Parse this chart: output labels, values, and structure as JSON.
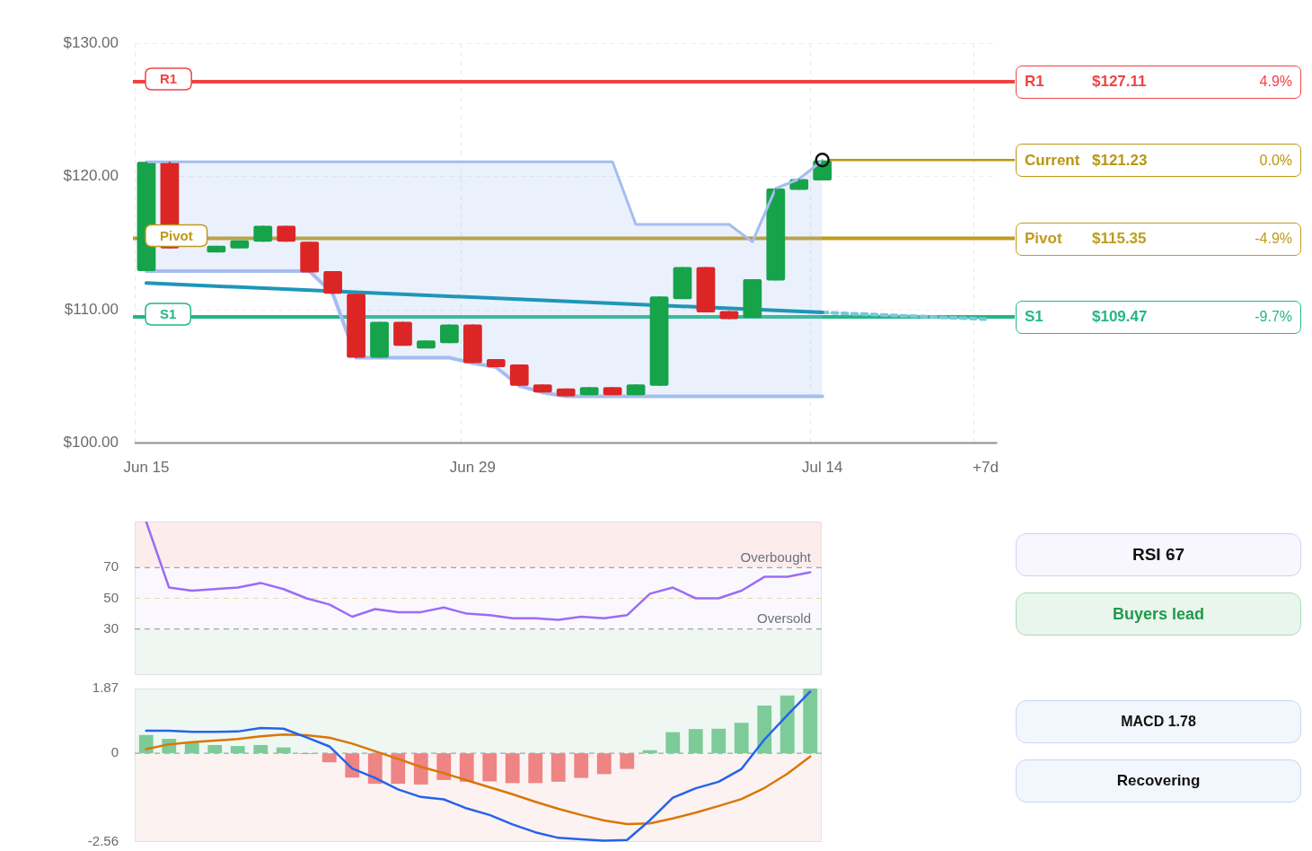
{
  "chart_data": [
    {
      "type": "candlestick",
      "categories": [
        "Jun 15",
        null,
        null,
        null,
        null,
        null,
        null,
        null,
        null,
        null,
        null,
        null,
        null,
        null,
        "Jun 29",
        null,
        null,
        null,
        null,
        null,
        null,
        null,
        null,
        null,
        null,
        null,
        null,
        null,
        null,
        "Jul 14",
        null,
        null,
        null,
        null,
        null,
        null,
        "+7d"
      ],
      "ohlc": [
        [
          112.9,
          121.1,
          112.9,
          121.1
        ],
        [
          121.1,
          121.1,
          114.6,
          114.6
        ],
        null,
        [
          114.3,
          114.8,
          114.3,
          114.8
        ],
        [
          114.6,
          115.2,
          114.6,
          115.2
        ],
        [
          115.1,
          116.3,
          115.1,
          116.3
        ],
        [
          116.3,
          116.3,
          115.1,
          115.1
        ],
        [
          115.1,
          115.1,
          112.8,
          112.8
        ],
        [
          112.9,
          112.9,
          111.2,
          111.2
        ],
        [
          111.2,
          111.2,
          106.4,
          106.4
        ],
        [
          106.4,
          109.1,
          106.4,
          109.1
        ],
        [
          109.1,
          109.1,
          107.3,
          107.3
        ],
        [
          107.1,
          107.7,
          107.1,
          107.7
        ],
        [
          107.5,
          108.9,
          107.5,
          108.9
        ],
        [
          108.9,
          108.9,
          106.0,
          106.0
        ],
        [
          106.3,
          106.3,
          105.7,
          105.7
        ],
        [
          105.9,
          105.9,
          104.3,
          104.3
        ],
        [
          104.4,
          104.4,
          103.8,
          103.8
        ],
        [
          104.1,
          104.1,
          103.5,
          103.5
        ],
        [
          103.6,
          104.2,
          103.6,
          104.2
        ],
        [
          104.2,
          104.2,
          103.6,
          103.6
        ],
        [
          103.6,
          104.4,
          103.6,
          104.4
        ],
        [
          104.3,
          111.0,
          104.3,
          111.0
        ],
        [
          110.8,
          113.2,
          110.8,
          113.2
        ],
        [
          113.2,
          113.2,
          109.8,
          109.8
        ],
        [
          109.9,
          109.9,
          109.3,
          109.3
        ],
        [
          109.4,
          112.3,
          109.4,
          112.3
        ],
        [
          112.2,
          119.1,
          112.2,
          119.1
        ],
        [
          119.0,
          119.8,
          119.0,
          119.8
        ],
        [
          119.7,
          121.2,
          119.7,
          121.2
        ],
        null,
        null,
        null,
        null,
        null,
        null,
        null
      ],
      "series": [
        {
          "type": "line",
          "color": "#a4bdf2",
          "values": [
            112.9,
            112.9,
            112.9,
            112.9,
            112.9,
            112.9,
            112.9,
            112.9,
            111.2,
            106.4,
            106.4,
            106.4,
            106.4,
            106.4,
            106.0,
            105.7,
            104.3,
            103.8,
            103.5,
            103.5,
            103.5,
            103.5,
            103.5,
            103.5,
            103.5,
            103.5,
            103.5,
            103.5,
            103.5,
            103.5,
            null,
            null,
            null,
            null,
            null,
            null,
            null
          ]
        },
        {
          "type": "line",
          "color": "#a4bdf2",
          "upper": [
            121.1,
            121.1,
            121.1,
            121.1,
            121.1,
            121.1,
            121.1,
            121.1,
            121.1,
            121.1,
            121.1,
            121.1,
            121.1,
            121.1,
            121.1,
            121.1,
            121.1,
            121.1,
            121.1,
            121.1,
            121.1,
            116.4,
            116.4,
            116.4,
            116.4,
            116.4,
            115.1,
            119.1,
            119.8,
            121.2,
            null,
            null,
            null,
            null,
            null,
            null,
            null
          ],
          "values": [
            121.1,
            121.1,
            121.1,
            121.1,
            121.1,
            121.1,
            121.1,
            121.1,
            121.1,
            121.1,
            121.1,
            121.1,
            121.1,
            121.1,
            121.1,
            121.1,
            121.1,
            121.1,
            121.1,
            121.1,
            121.1,
            116.4,
            116.4,
            116.4,
            116.4,
            116.4,
            115.1,
            119.1,
            119.8,
            121.2,
            null,
            null,
            null,
            null,
            null,
            null,
            null
          ],
          "lower": [
            112.9,
            112.9,
            112.9,
            112.9,
            112.9,
            112.9,
            112.9,
            112.9,
            111.2,
            106.4,
            106.4,
            106.4,
            106.4,
            106.4,
            106.0,
            105.7,
            104.3,
            103.8,
            103.5,
            103.5,
            103.5,
            103.5,
            103.5,
            103.5,
            103.5,
            103.5,
            103.5,
            103.5,
            103.5,
            103.5,
            null,
            null,
            null,
            null,
            null,
            null,
            null
          ]
        },
        {
          "type": "line",
          "color": "#1e96b9",
          "values": [
            112.0,
            null,
            null,
            null,
            null,
            null,
            null,
            null,
            null,
            null,
            null,
            null,
            null,
            null,
            null,
            null,
            null,
            null,
            null,
            null,
            null,
            null,
            null,
            null,
            null,
            null,
            null,
            null,
            null,
            109.8,
            null,
            null,
            null,
            null,
            null,
            null,
            null
          ]
        },
        {
          "type": "line",
          "color": "#7cc6da",
          "line_style": "dashed",
          "values": [
            null,
            null,
            null,
            null,
            null,
            null,
            null,
            null,
            null,
            null,
            null,
            null,
            null,
            null,
            null,
            null,
            null,
            null,
            null,
            null,
            null,
            null,
            null,
            null,
            null,
            null,
            null,
            null,
            null,
            109.8,
            null,
            null,
            null,
            null,
            null,
            null,
            109.3
          ]
        }
      ],
      "ylim": [
        100,
        130
      ],
      "yticks": [
        {
          "value": 100,
          "label": "$100.00"
        },
        {
          "value": 110,
          "label": "$110.00"
        },
        {
          "value": 120,
          "label": "$120.00"
        },
        {
          "value": 130,
          "label": "$130.00"
        }
      ],
      "grid": true,
      "ref_lines": [
        {
          "axis": "y",
          "value": 127.11,
          "label": "R1",
          "color": "#ef4444"
        },
        {
          "axis": "y",
          "value": 115.35,
          "label": "Pivot",
          "color": "#bf9b1b"
        },
        {
          "axis": "y",
          "value": 109.47,
          "label": "S1",
          "color": "#22b886"
        }
      ],
      "annotations": [
        {
          "text": "Current",
          "x": "Jul 14",
          "y": 121.23
        },
        "$127.11",
        "4.9%",
        "$121.23",
        "0.0%",
        "$115.35",
        "-4.9%",
        "$109.47",
        "-9.7%"
      ]
    },
    {
      "type": "line",
      "categories": [
        null,
        null,
        null,
        null,
        null,
        null,
        null,
        null,
        null,
        null,
        null,
        null,
        null,
        null,
        null,
        null,
        null,
        null,
        null,
        null,
        null,
        null,
        null,
        null,
        null,
        null,
        null,
        null,
        null,
        null
      ],
      "tick_labels": "y",
      "series": [
        {
          "color": "#9b6cf6",
          "values": [
            100,
            57,
            55,
            56,
            57,
            60,
            56,
            50,
            46,
            38,
            43,
            41,
            41,
            44,
            40,
            39,
            37,
            37,
            36,
            38,
            37,
            39,
            53,
            57,
            50,
            50,
            55,
            64,
            64,
            67
          ]
        }
      ],
      "ylim": [
        0,
        100
      ],
      "yticks": [
        30,
        50,
        70
      ],
      "ref_lines": [
        {
          "axis": "y",
          "value": 70,
          "label": "Overbought",
          "color": "#a0a4ab",
          "line_style": "dashed"
        },
        {
          "axis": "y",
          "value": 50,
          "color": "#ead9a0",
          "line_style": "dashed"
        },
        {
          "axis": "y",
          "value": 30,
          "label": "Oversold",
          "color": "#a0a4ab",
          "line_style": "dashed"
        }
      ],
      "bands": [
        {
          "axis": "y",
          "from": 70,
          "to": 100,
          "color": "#fcecec"
        },
        {
          "axis": "y",
          "from": 30,
          "to": 70,
          "color": "#faf8fe"
        },
        {
          "axis": "y",
          "from": 0,
          "to": 30,
          "color": "#eef7f1"
        }
      ],
      "annotations": [
        "RSI 67",
        "Buyers lead"
      ]
    },
    {
      "type": "bar",
      "categories": [
        null,
        null,
        null,
        null,
        null,
        null,
        null,
        null,
        null,
        null,
        null,
        null,
        null,
        null,
        null,
        null,
        null,
        null,
        null,
        null,
        null,
        null,
        null,
        null,
        null,
        null,
        null,
        null,
        null,
        null
      ],
      "tick_labels": "y",
      "series": [
        {
          "type": "bar",
          "colors": [
            "#7dcb98",
            "#7dcb98",
            "#7dcb98",
            "#7dcb98",
            "#7dcb98",
            "#7dcb98",
            "#7dcb98",
            "#ee8484",
            "#ee8484",
            "#ee8484",
            "#ee8484",
            "#ee8484",
            "#ee8484",
            "#ee8484",
            "#ee8484",
            "#ee8484",
            "#ee8484",
            "#ee8484",
            "#ee8484",
            "#ee8484",
            "#ee8484",
            "#ee8484",
            "#7dcb98",
            "#7dcb98",
            "#7dcb98",
            "#7dcb98",
            "#7dcb98",
            "#7dcb98",
            "#7dcb98",
            "#7dcb98"
          ],
          "values": [
            0.53,
            0.42,
            0.31,
            0.24,
            0.21,
            0.24,
            0.17,
            -0.02,
            -0.26,
            -0.7,
            -0.88,
            -0.88,
            -0.9,
            -0.77,
            -0.82,
            -0.81,
            -0.86,
            -0.86,
            -0.82,
            -0.71,
            -0.6,
            -0.45,
            0.09,
            0.61,
            0.7,
            0.71,
            0.88,
            1.38,
            1.67,
            1.87
          ]
        },
        {
          "type": "line",
          "color": "#2563eb",
          "values": [
            0.65,
            0.65,
            0.62,
            0.62,
            0.63,
            0.73,
            0.71,
            0.46,
            0.2,
            -0.44,
            -0.71,
            -1.04,
            -1.26,
            -1.33,
            -1.59,
            -1.78,
            -2.05,
            -2.28,
            -2.44,
            -2.48,
            -2.52,
            -2.5,
            -1.93,
            -1.28,
            -1.01,
            -0.82,
            -0.45,
            0.4,
            1.1,
            1.78
          ]
        },
        {
          "type": "line",
          "color": "#d97706",
          "values": [
            0.12,
            0.26,
            0.32,
            0.37,
            0.41,
            0.49,
            0.54,
            0.52,
            0.45,
            0.28,
            0.06,
            -0.16,
            -0.39,
            -0.57,
            -0.78,
            -0.98,
            -1.18,
            -1.4,
            -1.6,
            -1.78,
            -1.94,
            -2.04,
            -2.02,
            -1.88,
            -1.71,
            -1.52,
            -1.32,
            -1.0,
            -0.59,
            -0.09
          ]
        }
      ],
      "ylim": [
        -2.56,
        1.87
      ],
      "yticks": [
        -2.56,
        0,
        1.87
      ],
      "ref_lines": [
        {
          "axis": "y",
          "value": 0,
          "color": "#a0a4ab",
          "line_style": "dashed"
        }
      ],
      "bands": [
        {
          "axis": "y",
          "from": 0,
          "to": 1.87,
          "color": "#eff7f2"
        },
        {
          "axis": "y",
          "from": -2.56,
          "to": 0,
          "color": "#fcf2f2"
        }
      ],
      "annotations": [
        "MACD 1.78",
        "Recovering"
      ]
    }
  ]
}
